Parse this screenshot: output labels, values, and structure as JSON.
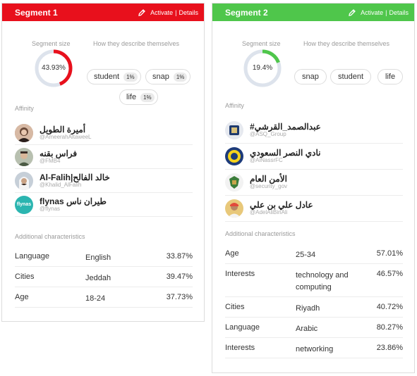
{
  "segments": [
    {
      "title": "Segment 1",
      "color": "#e8101c",
      "activate_label": "Activate",
      "separator": "|",
      "details_label": "Details",
      "size_label": "Segment size",
      "size_value": "43.93%",
      "size_fraction": 0.4393,
      "describe_label": "How they describe themselves",
      "descriptors": [
        {
          "word": "student",
          "pct": "1%"
        },
        {
          "word": "snap",
          "pct": "1%"
        },
        {
          "word": "life",
          "pct": "1%"
        }
      ],
      "affinity_label": "Affinity",
      "affinity": [
        {
          "name": "أميرة الطويل",
          "handle": "@AmeerahAltaweeL",
          "avatar_icon": "person-avatar-icon"
        },
        {
          "name": "فراس بقنه",
          "handle": "@FMB4",
          "avatar_icon": "person-avatar-icon"
        },
        {
          "name": "Al-Falih|خالد الفالح",
          "handle": "@Khalid_AlFalih",
          "avatar_icon": "person-avatar-icon"
        },
        {
          "name": "flynas طيران ناس",
          "handle": "@flynas",
          "avatar_icon": "flynas-logo-icon",
          "logo_text": "flynas"
        }
      ],
      "characteristics_label": "Additional characteristics",
      "characteristics": [
        {
          "key": "Language",
          "value": "English",
          "pct": "33.87%"
        },
        {
          "key": "Cities",
          "value": "Jeddah",
          "pct": "39.47%"
        },
        {
          "key": "Age",
          "value": "18-24",
          "pct": "37.73%"
        }
      ]
    },
    {
      "title": "Segment 2",
      "color": "#4fc64b",
      "activate_label": "Activate",
      "separator": "|",
      "details_label": "Details",
      "size_label": "Segment size",
      "size_value": "19.4%",
      "size_fraction": 0.194,
      "describe_label": "How they describe themselves",
      "descriptors": [
        {
          "word": "snap"
        },
        {
          "word": "student"
        },
        {
          "word": "life"
        }
      ],
      "affinity_label": "Affinity",
      "affinity": [
        {
          "name": "#عبدالصمد_القرشي",
          "handle": "@ASQ_Group",
          "avatar_icon": "logo-avatar-icon"
        },
        {
          "name": "نادي النصر السعودي",
          "handle": "@AlNassrFC",
          "avatar_icon": "club-crest-icon"
        },
        {
          "name": "الأمن العام",
          "handle": "@security_gov",
          "avatar_icon": "emblem-icon"
        },
        {
          "name": "عادل علي بن علي",
          "handle": "@AdelAliBinAli",
          "avatar_icon": "person-avatar-icon"
        }
      ],
      "characteristics_label": "Additional characteristics",
      "characteristics": [
        {
          "key": "Age",
          "value": "25-34",
          "pct": "57.01%"
        },
        {
          "key": "Interests",
          "value": "technology and computing",
          "pct": "46.57%"
        },
        {
          "key": "Cities",
          "value": "Riyadh",
          "pct": "40.72%"
        },
        {
          "key": "Language",
          "value": "Arabic",
          "pct": "80.27%"
        },
        {
          "key": "Interests",
          "value": "networking",
          "pct": "23.86%"
        }
      ]
    }
  ]
}
